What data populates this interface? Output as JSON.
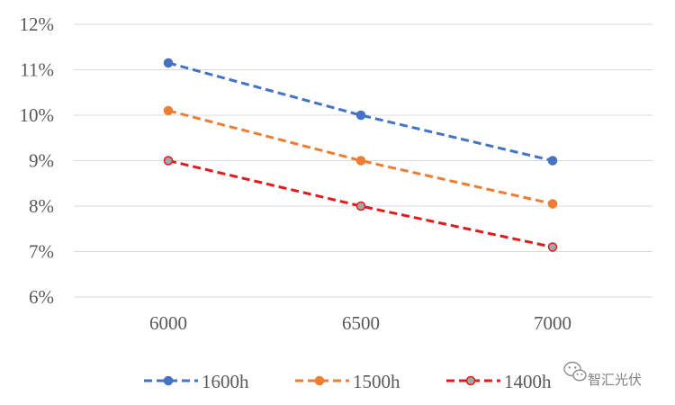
{
  "chart_data": {
    "type": "line",
    "title": "",
    "xlabel": "",
    "ylabel": "",
    "categories": [
      "6000",
      "6500",
      "7000"
    ],
    "y_ticks": [
      "6%",
      "7%",
      "8%",
      "9%",
      "10%",
      "11%",
      "12%"
    ],
    "ylim": [
      6,
      12
    ],
    "grid": "horizontal",
    "legend_position": "bottom",
    "series": [
      {
        "name": "1600h",
        "values": [
          11.15,
          10.0,
          9.0
        ],
        "color": "#4472C4",
        "line_style": "dashed",
        "marker": "circle"
      },
      {
        "name": "1500h",
        "values": [
          10.1,
          9.0,
          8.05
        ],
        "color": "#ED7D31",
        "line_style": "dashed",
        "marker": "circle"
      },
      {
        "name": "1400h",
        "values": [
          9.0,
          8.0,
          7.1
        ],
        "color": "#E31A1C",
        "line_style": "dashed",
        "marker": "circle-gray-fill"
      }
    ]
  },
  "watermark": {
    "icon": "wechat-icon",
    "text": "智汇光伏"
  }
}
